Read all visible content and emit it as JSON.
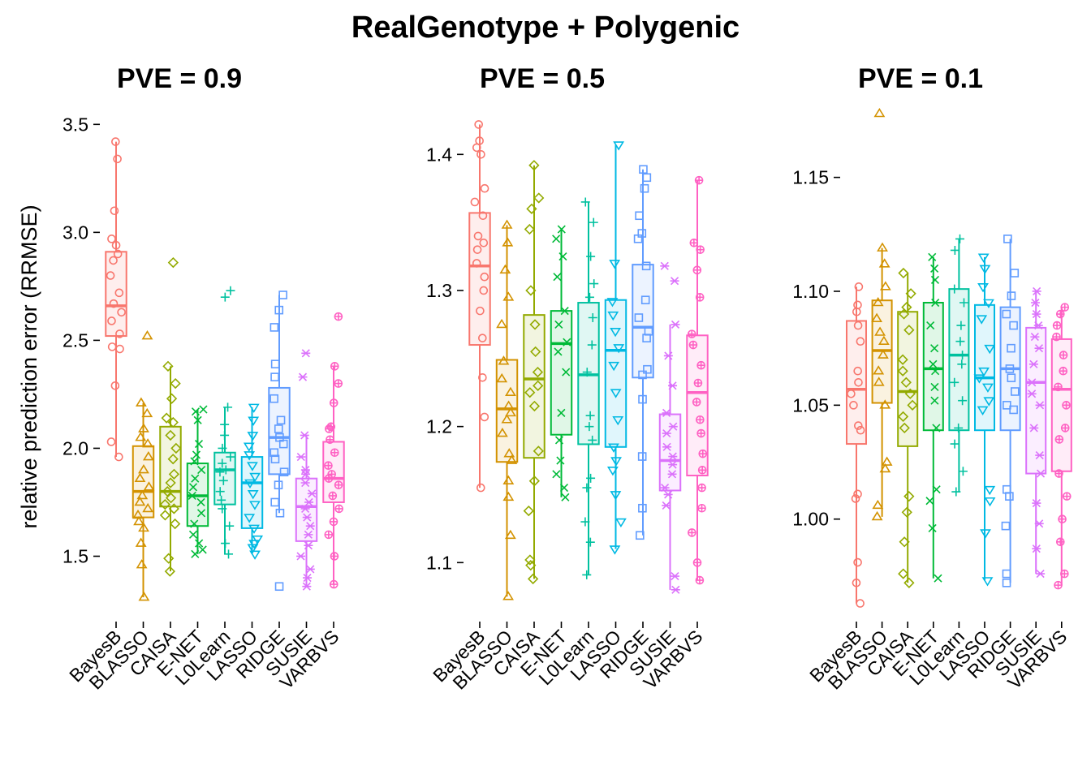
{
  "title": "RealGenotype + Polygenic",
  "ylabel": "relative prediction error (RRMSE)",
  "methods": [
    "BayesB",
    "BLASSO",
    "CAISA",
    "E-NET",
    "L0Learn",
    "LASSO",
    "RIDGE",
    "SUSIE",
    "VARBVS"
  ],
  "colors": [
    "#F8766D",
    "#D39200",
    "#93AA00",
    "#00BA38",
    "#00C19F",
    "#00B9E3",
    "#619CFF",
    "#DB72FB",
    "#FF61C3"
  ],
  "shapes": [
    "circle",
    "triangle",
    "diamond",
    "x",
    "plus",
    "triangle-down",
    "square",
    "asterisk",
    "circle-plus"
  ],
  "chart_data": [
    {
      "type": "box",
      "title": "PVE = 0.9",
      "ylim": [
        1.25,
        3.55
      ],
      "yticks": [
        "1.5",
        "2.0",
        "2.5",
        "3.0",
        "3.5"
      ],
      "boxes": [
        {
          "q1": 2.52,
          "median": 2.66,
          "q3": 2.91,
          "wlo": 1.96,
          "whi": 3.42,
          "outliers": [],
          "points": [
            1.96,
            2.03,
            2.29,
            2.46,
            2.47,
            2.53,
            2.59,
            2.63,
            2.67,
            2.72,
            2.8,
            2.87,
            2.9,
            2.94,
            2.97,
            3.1,
            3.34,
            3.42
          ]
        },
        {
          "q1": 1.68,
          "median": 1.8,
          "q3": 2.01,
          "wlo": 1.31,
          "whi": 2.21,
          "outliers": [
            2.52
          ],
          "points": [
            1.31,
            1.46,
            1.56,
            1.63,
            1.66,
            1.69,
            1.72,
            1.75,
            1.78,
            1.82,
            1.86,
            1.9,
            1.96,
            2.02,
            2.05,
            2.09,
            2.16,
            2.21,
            2.52
          ]
        },
        {
          "q1": 1.73,
          "median": 1.8,
          "q3": 2.1,
          "wlo": 1.43,
          "whi": 2.38,
          "outliers": [
            2.86
          ],
          "points": [
            1.43,
            1.49,
            1.65,
            1.69,
            1.72,
            1.74,
            1.77,
            1.8,
            1.84,
            1.88,
            1.95,
            2.0,
            2.06,
            2.12,
            2.14,
            2.23,
            2.3,
            2.38,
            2.86
          ]
        },
        {
          "q1": 1.64,
          "median": 1.78,
          "q3": 1.93,
          "wlo": 1.51,
          "whi": 2.18,
          "outliers": [],
          "points": [
            1.51,
            1.53,
            1.56,
            1.6,
            1.65,
            1.7,
            1.75,
            1.78,
            1.82,
            1.86,
            1.9,
            1.94,
            1.97,
            2.02,
            2.13,
            2.17,
            2.18
          ]
        },
        {
          "q1": 1.74,
          "median": 1.9,
          "q3": 1.98,
          "wlo": 1.51,
          "whi": 2.19,
          "outliers": [
            2.7,
            2.73
          ],
          "points": [
            1.51,
            1.56,
            1.64,
            1.72,
            1.76,
            1.8,
            1.85,
            1.89,
            1.9,
            1.93,
            1.96,
            2.0,
            2.06,
            2.11,
            2.19,
            2.7,
            2.73
          ]
        },
        {
          "q1": 1.63,
          "median": 1.84,
          "q3": 1.96,
          "wlo": 1.51,
          "whi": 2.19,
          "outliers": [],
          "points": [
            1.51,
            1.54,
            1.56,
            1.58,
            1.63,
            1.68,
            1.74,
            1.79,
            1.84,
            1.87,
            1.92,
            1.97,
            2.01,
            2.06,
            2.13,
            2.19
          ]
        },
        {
          "q1": 1.88,
          "median": 2.05,
          "q3": 2.28,
          "wlo": 1.7,
          "whi": 2.71,
          "outliers": [
            1.36
          ],
          "points": [
            1.36,
            1.7,
            1.75,
            1.83,
            1.89,
            1.95,
            1.98,
            2.02,
            2.05,
            2.09,
            2.13,
            2.23,
            2.33,
            2.39,
            2.56,
            2.64,
            2.71
          ]
        },
        {
          "q1": 1.57,
          "median": 1.73,
          "q3": 1.86,
          "wlo": 1.36,
          "whi": 2.06,
          "outliers": [
            2.33,
            2.44
          ],
          "points": [
            1.36,
            1.4,
            1.44,
            1.5,
            1.55,
            1.6,
            1.64,
            1.68,
            1.72,
            1.75,
            1.79,
            1.84,
            1.88,
            1.9,
            1.96,
            2.06,
            2.33,
            2.44
          ]
        },
        {
          "q1": 1.75,
          "median": 1.86,
          "q3": 2.03,
          "wlo": 1.37,
          "whi": 2.38,
          "outliers": [
            2.61
          ],
          "points": [
            1.37,
            1.5,
            1.6,
            1.66,
            1.72,
            1.78,
            1.83,
            1.86,
            1.88,
            1.92,
            1.98,
            2.04,
            2.09,
            2.1,
            2.21,
            2.3,
            2.38,
            2.61
          ]
        }
      ]
    },
    {
      "type": "box",
      "title": "PVE = 0.5",
      "ylim": [
        1.065,
        1.43
      ],
      "yticks": [
        "1.1",
        "1.2",
        "1.3",
        "1.4"
      ],
      "boxes": [
        {
          "q1": 1.26,
          "median": 1.318,
          "q3": 1.357,
          "wlo": 1.155,
          "whi": 1.422,
          "outliers": [],
          "points": [
            1.155,
            1.207,
            1.236,
            1.265,
            1.285,
            1.3,
            1.31,
            1.32,
            1.33,
            1.335,
            1.34,
            1.355,
            1.365,
            1.375,
            1.4,
            1.405,
            1.41,
            1.422
          ]
        },
        {
          "q1": 1.174,
          "median": 1.213,
          "q3": 1.249,
          "wlo": 1.075,
          "whi": 1.348,
          "outliers": [],
          "points": [
            1.075,
            1.12,
            1.148,
            1.16,
            1.175,
            1.18,
            1.195,
            1.205,
            1.21,
            1.215,
            1.225,
            1.235,
            1.248,
            1.275,
            1.295,
            1.315,
            1.335,
            1.348
          ]
        },
        {
          "q1": 1.177,
          "median": 1.235,
          "q3": 1.282,
          "wlo": 1.088,
          "whi": 1.392,
          "outliers": [],
          "points": [
            1.088,
            1.098,
            1.102,
            1.138,
            1.16,
            1.182,
            1.215,
            1.225,
            1.23,
            1.24,
            1.255,
            1.275,
            1.3,
            1.345,
            1.36,
            1.368,
            1.392
          ]
        },
        {
          "q1": 1.194,
          "median": 1.261,
          "q3": 1.285,
          "wlo": 1.148,
          "whi": 1.345,
          "outliers": [],
          "points": [
            1.148,
            1.155,
            1.165,
            1.175,
            1.19,
            1.21,
            1.24,
            1.255,
            1.262,
            1.275,
            1.285,
            1.31,
            1.325,
            1.338,
            1.345
          ]
        },
        {
          "q1": 1.187,
          "median": 1.238,
          "q3": 1.291,
          "wlo": 1.091,
          "whi": 1.365,
          "outliers": [],
          "points": [
            1.091,
            1.115,
            1.13,
            1.155,
            1.162,
            1.19,
            1.2,
            1.208,
            1.24,
            1.26,
            1.28,
            1.295,
            1.305,
            1.325,
            1.35,
            1.365
          ]
        },
        {
          "q1": 1.185,
          "median": 1.256,
          "q3": 1.293,
          "wlo": 1.11,
          "whi": 1.407,
          "outliers": [],
          "points": [
            1.11,
            1.13,
            1.15,
            1.168,
            1.175,
            1.185,
            1.205,
            1.225,
            1.245,
            1.258,
            1.27,
            1.282,
            1.292,
            1.32,
            1.407
          ]
        },
        {
          "q1": 1.236,
          "median": 1.273,
          "q3": 1.319,
          "wlo": 1.12,
          "whi": 1.389,
          "outliers": [],
          "points": [
            1.12,
            1.14,
            1.178,
            1.22,
            1.238,
            1.242,
            1.265,
            1.27,
            1.28,
            1.293,
            1.318,
            1.338,
            1.342,
            1.355,
            1.375,
            1.383,
            1.389
          ]
        },
        {
          "q1": 1.153,
          "median": 1.175,
          "q3": 1.209,
          "wlo": 1.08,
          "whi": 1.275,
          "outliers": [
            1.307,
            1.318
          ],
          "points": [
            1.08,
            1.09,
            1.142,
            1.15,
            1.155,
            1.165,
            1.172,
            1.178,
            1.185,
            1.195,
            1.2,
            1.21,
            1.23,
            1.252,
            1.275,
            1.307,
            1.318
          ]
        },
        {
          "q1": 1.164,
          "median": 1.225,
          "q3": 1.267,
          "wlo": 1.087,
          "whi": 1.381,
          "outliers": [],
          "points": [
            1.087,
            1.1,
            1.122,
            1.14,
            1.155,
            1.168,
            1.18,
            1.195,
            1.205,
            1.218,
            1.232,
            1.245,
            1.26,
            1.268,
            1.295,
            1.315,
            1.33,
            1.335,
            1.381
          ]
        }
      ]
    },
    {
      "type": "box",
      "title": "PVE = 0.1",
      "ylim": [
        0.96,
        1.178
      ],
      "yticks": [
        "1.00",
        "1.05",
        "1.10",
        "1.15"
      ],
      "boxes": [
        {
          "q1": 1.033,
          "median": 1.057,
          "q3": 1.087,
          "wlo": 0.963,
          "whi": 1.102,
          "outliers": [],
          "points": [
            0.963,
            0.972,
            0.981,
            1.009,
            1.011,
            1.039,
            1.041,
            1.05,
            1.055,
            1.06,
            1.065,
            1.078,
            1.085,
            1.091,
            1.094,
            1.102
          ]
        },
        {
          "q1": 1.051,
          "median": 1.074,
          "q3": 1.096,
          "wlo": 1.001,
          "whi": 1.119,
          "outliers": [
            1.178
          ],
          "points": [
            1.001,
            1.006,
            1.022,
            1.025,
            1.05,
            1.06,
            1.065,
            1.072,
            1.078,
            1.082,
            1.088,
            1.095,
            1.102,
            1.112,
            1.119,
            1.178
          ]
        },
        {
          "q1": 1.032,
          "median": 1.056,
          "q3": 1.091,
          "wlo": 0.972,
          "whi": 1.108,
          "outliers": [],
          "points": [
            0.972,
            0.976,
            0.99,
            1.003,
            1.01,
            1.04,
            1.045,
            1.05,
            1.055,
            1.06,
            1.065,
            1.07,
            1.083,
            1.09,
            1.093,
            1.099,
            1.108
          ]
        },
        {
          "q1": 1.039,
          "median": 1.066,
          "q3": 1.095,
          "wlo": 0.974,
          "whi": 1.115,
          "outliers": [],
          "points": [
            0.974,
            0.996,
            1.008,
            1.013,
            1.04,
            1.052,
            1.058,
            1.065,
            1.068,
            1.075,
            1.085,
            1.095,
            1.105,
            1.11,
            1.115
          ]
        },
        {
          "q1": 1.039,
          "median": 1.072,
          "q3": 1.101,
          "wlo": 1.012,
          "whi": 1.123,
          "outliers": [],
          "points": [
            1.012,
            1.021,
            1.033,
            1.04,
            1.052,
            1.06,
            1.068,
            1.072,
            1.078,
            1.085,
            1.095,
            1.101,
            1.118,
            1.123
          ]
        },
        {
          "q1": 1.039,
          "median": 1.062,
          "q3": 1.094,
          "wlo": 0.973,
          "whi": 1.115,
          "outliers": [],
          "points": [
            0.973,
            0.994,
            1.008,
            1.013,
            1.048,
            1.052,
            1.058,
            1.062,
            1.065,
            1.075,
            1.088,
            1.095,
            1.102,
            1.11,
            1.115
          ]
        },
        {
          "q1": 1.039,
          "median": 1.066,
          "q3": 1.093,
          "wlo": 0.972,
          "whi": 1.123,
          "outliers": [],
          "points": [
            0.972,
            0.976,
            0.997,
            1.01,
            1.013,
            1.048,
            1.05,
            1.056,
            1.062,
            1.066,
            1.075,
            1.085,
            1.09,
            1.098,
            1.108,
            1.123
          ]
        },
        {
          "q1": 1.02,
          "median": 1.06,
          "q3": 1.084,
          "wlo": 0.976,
          "whi": 1.1,
          "outliers": [],
          "points": [
            0.976,
            0.987,
            0.998,
            1.007,
            1.02,
            1.028,
            1.04,
            1.05,
            1.055,
            1.06,
            1.068,
            1.075,
            1.08,
            1.085,
            1.09,
            1.095,
            1.1
          ]
        },
        {
          "q1": 1.021,
          "median": 1.057,
          "q3": 1.079,
          "wlo": 0.971,
          "whi": 1.093,
          "outliers": [],
          "points": [
            0.971,
            0.976,
            0.99,
            1.0,
            1.01,
            1.02,
            1.035,
            1.04,
            1.05,
            1.058,
            1.065,
            1.072,
            1.08,
            1.085,
            1.09,
            1.093
          ]
        }
      ]
    }
  ]
}
